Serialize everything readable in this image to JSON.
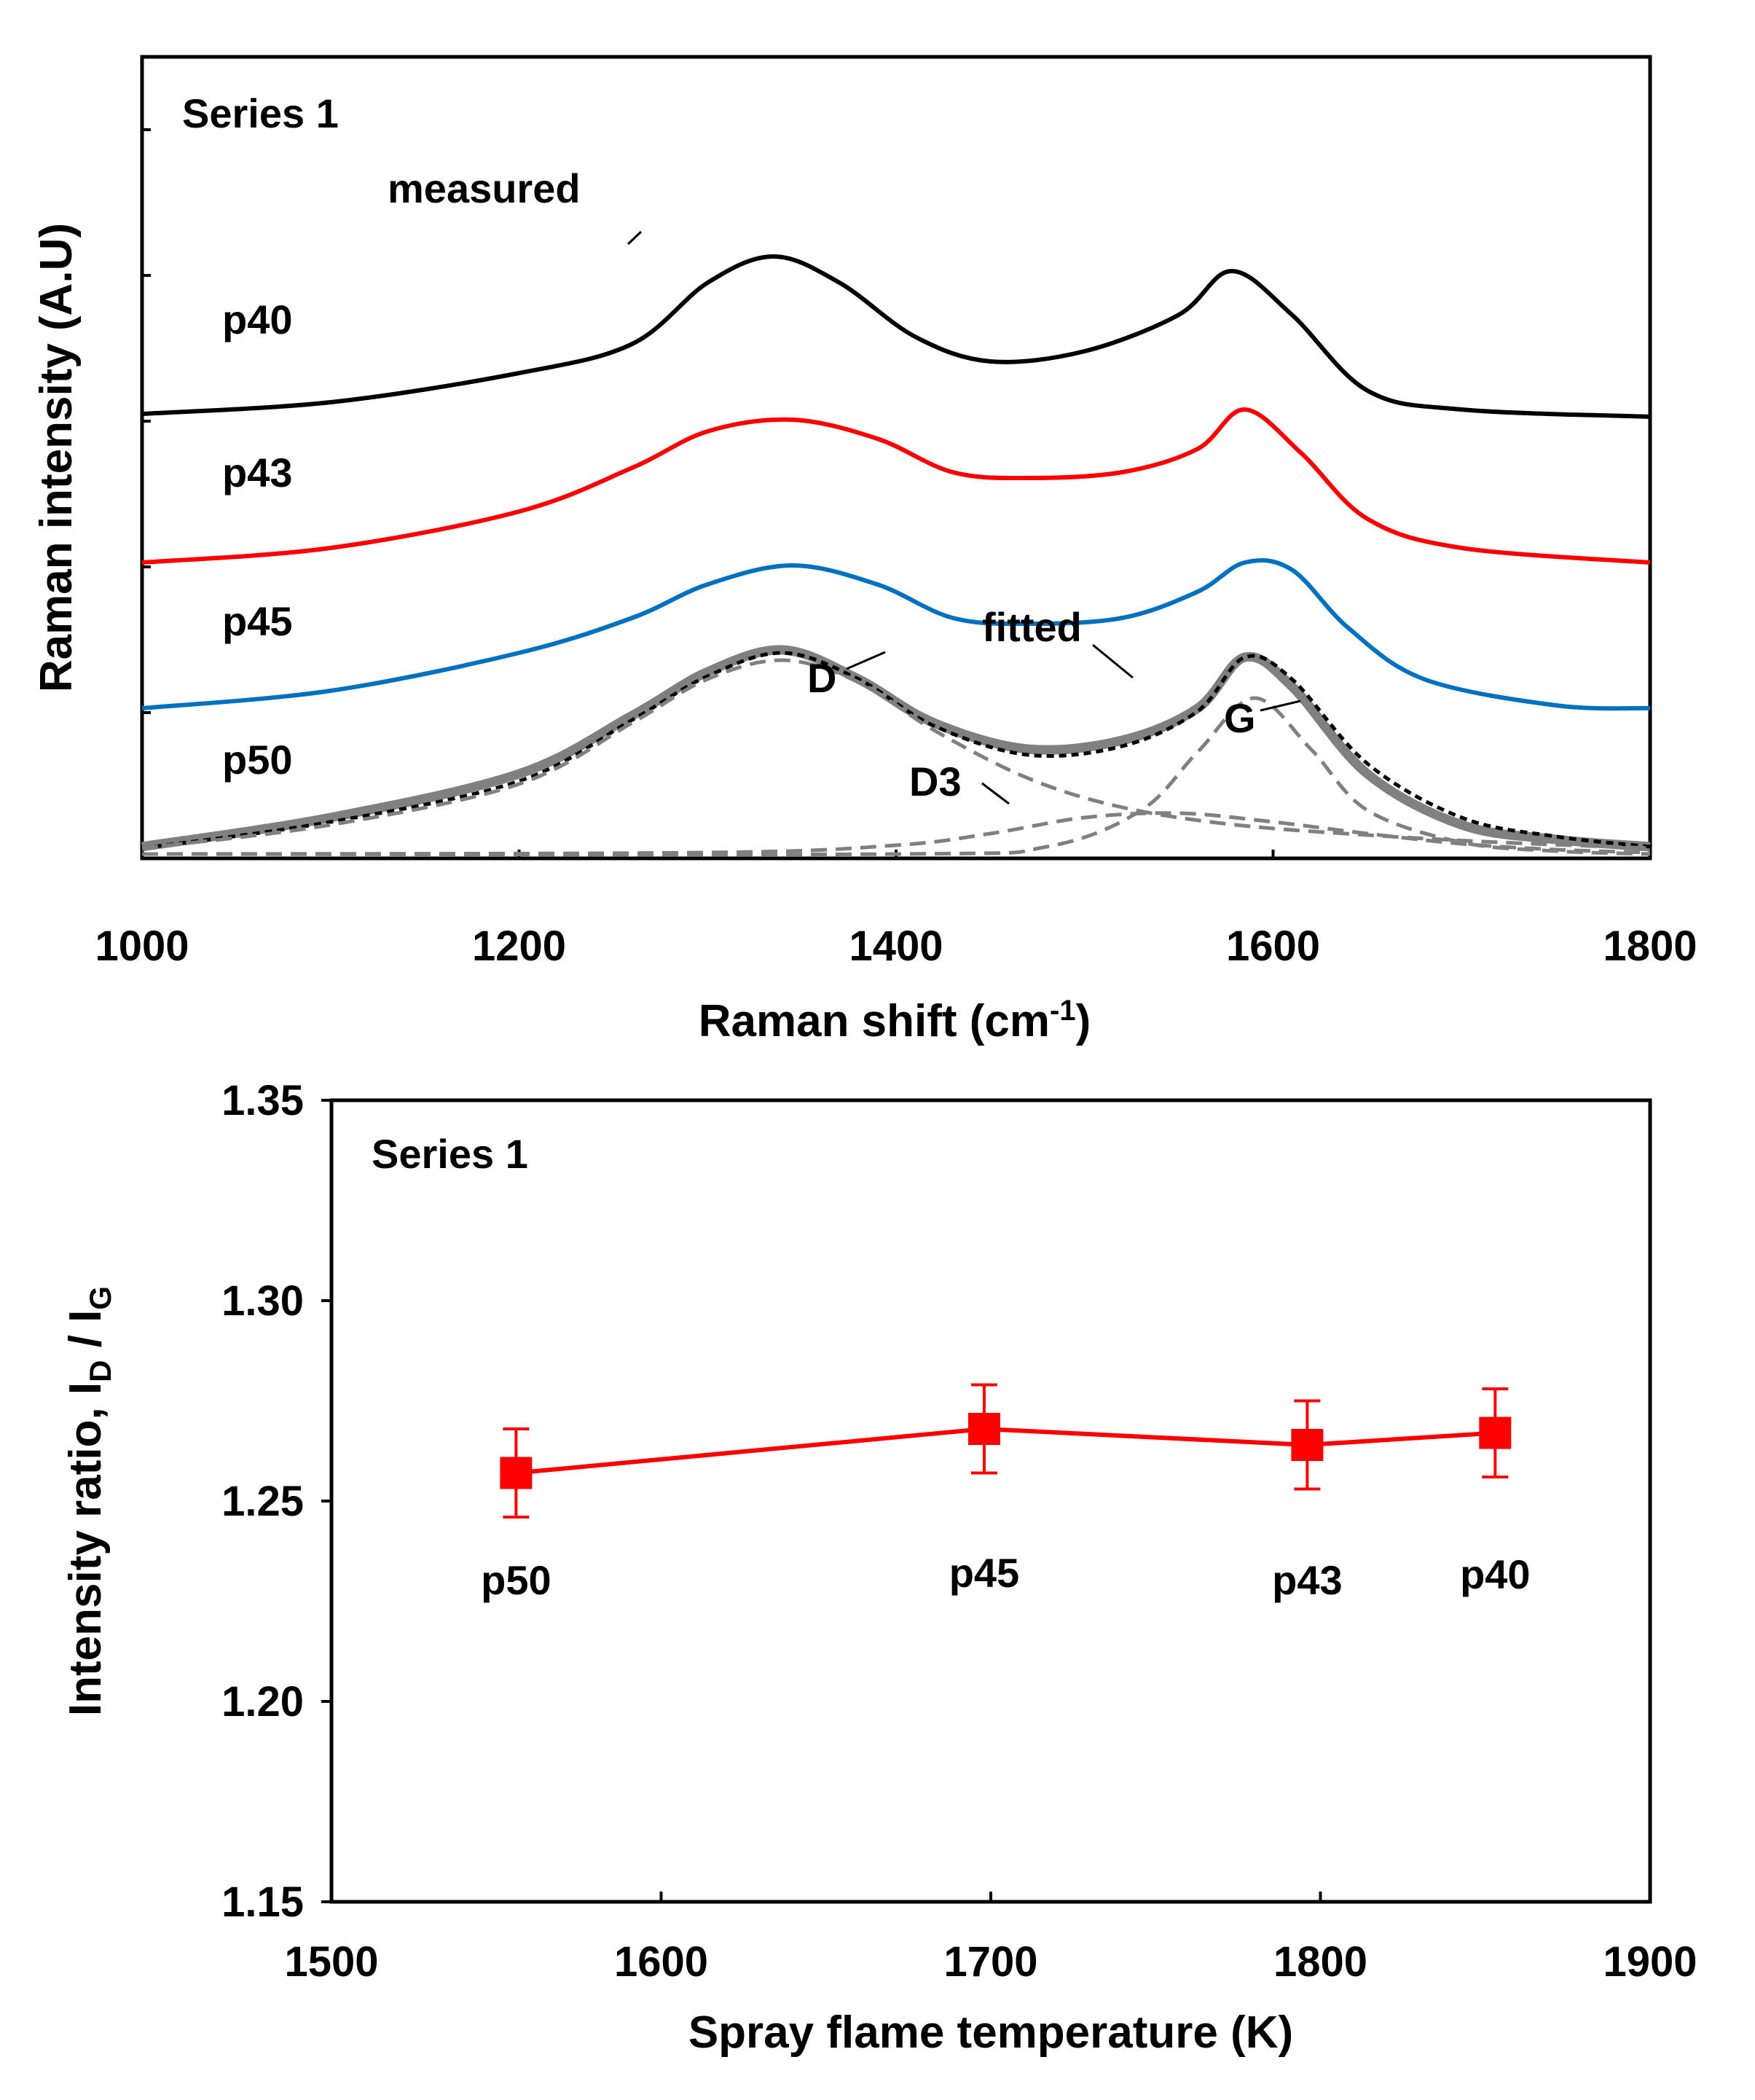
{
  "chart_data": [
    {
      "type": "line",
      "title": "",
      "panel_label": "Series 1",
      "xlabel_main": "Raman shift (cm",
      "xlabel_sup": "-1",
      "xlabel_end": ")",
      "ylabel": "Raman intensity (A.U)",
      "xlim": [
        1000,
        1800
      ],
      "x_ticks": [
        "1000",
        "1200",
        "1400",
        "1600",
        "1800"
      ],
      "y_ticks_unlabeled": 5,
      "grid": false,
      "series": [
        {
          "name": "p40",
          "color": "#000000",
          "style": "solid",
          "offset": 3.0,
          "x": [
            1000,
            1100,
            1200,
            1260,
            1300,
            1335,
            1370,
            1410,
            1450,
            1500,
            1550,
            1578,
            1610,
            1650,
            1700,
            1800
          ],
          "y": [
            0.02,
            0.1,
            0.3,
            0.5,
            0.92,
            1.1,
            0.92,
            0.55,
            0.38,
            0.45,
            0.7,
            1.0,
            0.7,
            0.18,
            0.05,
            0.0
          ]
        },
        {
          "name": "p43",
          "color": "#ff0000",
          "style": "solid",
          "offset": 2.0,
          "x": [
            1000,
            1100,
            1200,
            1260,
            1300,
            1345,
            1390,
            1430,
            1470,
            1520,
            1560,
            1585,
            1615,
            1650,
            1700,
            1800
          ],
          "y": [
            0.0,
            0.1,
            0.35,
            0.65,
            0.9,
            0.98,
            0.85,
            0.62,
            0.58,
            0.62,
            0.78,
            1.05,
            0.75,
            0.3,
            0.1,
            0.0
          ]
        },
        {
          "name": "p45",
          "color": "#0070c0",
          "style": "solid",
          "offset": 1.0,
          "x": [
            1000,
            1100,
            1200,
            1260,
            1300,
            1345,
            1390,
            1430,
            1470,
            1520,
            1560,
            1585,
            1610,
            1640,
            1680,
            1750,
            1800
          ],
          "y": [
            0.0,
            0.12,
            0.38,
            0.62,
            0.85,
            0.98,
            0.85,
            0.62,
            0.58,
            0.62,
            0.8,
            1.0,
            0.95,
            0.55,
            0.2,
            0.02,
            0.0
          ]
        },
        {
          "name": "p50 measured",
          "color": "#808080",
          "style": "thick",
          "offset": 0.0,
          "x": [
            1000,
            1100,
            1200,
            1260,
            1300,
            1340,
            1380,
            1420,
            1470,
            1520,
            1560,
            1585,
            1610,
            1650,
            1700,
            1750,
            1800
          ],
          "y": [
            0.05,
            0.25,
            0.55,
            0.95,
            1.25,
            1.4,
            1.2,
            0.9,
            0.72,
            0.78,
            1.0,
            1.35,
            1.15,
            0.55,
            0.2,
            0.1,
            0.05
          ]
        },
        {
          "name": "p50 fitted",
          "color": "#000000",
          "style": "dotted",
          "offset": 0.0,
          "x": [
            1000,
            1100,
            1200,
            1260,
            1300,
            1340,
            1380,
            1420,
            1470,
            1520,
            1560,
            1585,
            1610,
            1650,
            1700,
            1750,
            1800
          ],
          "y": [
            0.04,
            0.22,
            0.5,
            0.92,
            1.22,
            1.38,
            1.2,
            0.88,
            0.68,
            0.74,
            0.98,
            1.35,
            1.2,
            0.62,
            0.25,
            0.12,
            0.05
          ]
        },
        {
          "name": "D",
          "color": "#808080",
          "style": "dashed",
          "offset": 0.0,
          "x": [
            1000,
            1100,
            1200,
            1260,
            1300,
            1340,
            1380,
            1420,
            1470,
            1520,
            1580,
            1650,
            1720,
            1800
          ],
          "y": [
            0.04,
            0.2,
            0.48,
            0.9,
            1.2,
            1.33,
            1.18,
            0.85,
            0.52,
            0.32,
            0.2,
            0.13,
            0.08,
            0.04
          ]
        },
        {
          "name": "G",
          "color": "#808080",
          "style": "dashed",
          "offset": 0.0,
          "x": [
            1000,
            1400,
            1480,
            1530,
            1560,
            1590,
            1620,
            1650,
            1700,
            1750,
            1800
          ],
          "y": [
            0.0,
            0.0,
            0.05,
            0.3,
            0.7,
            1.07,
            0.72,
            0.3,
            0.08,
            0.02,
            0.0
          ]
        },
        {
          "name": "D3",
          "color": "#808080",
          "style": "dashed",
          "offset": 0.0,
          "x": [
            1000,
            1300,
            1400,
            1450,
            1500,
            1550,
            1600,
            1650,
            1700,
            1750,
            1800
          ],
          "y": [
            0.0,
            0.01,
            0.06,
            0.14,
            0.25,
            0.28,
            0.22,
            0.14,
            0.07,
            0.03,
            0.01
          ]
        }
      ],
      "annotations": [
        "measured",
        "fitted",
        "D",
        "G",
        "D3"
      ],
      "series_labels": [
        "p40",
        "p43",
        "p45",
        "p50"
      ]
    },
    {
      "type": "line",
      "title": "",
      "panel_label": "Series 1",
      "xlabel": "Spray flame temperature (K)",
      "ylabel_main": "Intensity ratio,  I",
      "ylabel_sub1": "D",
      "ylabel_mid": " / I",
      "ylabel_sub2": "G",
      "xlim": [
        1500,
        1900
      ],
      "ylim": [
        1.15,
        1.35
      ],
      "x_ticks": [
        "1500",
        "1600",
        "1700",
        "1800",
        "1900"
      ],
      "y_ticks": [
        "1.15",
        "1.20",
        "1.25",
        "1.30",
        "1.35"
      ],
      "grid": false,
      "color": "#ff0000",
      "points": [
        {
          "x": 1556,
          "y": 1.257,
          "err": 0.011,
          "label": "p50"
        },
        {
          "x": 1698,
          "y": 1.268,
          "err": 0.011,
          "label": "p45"
        },
        {
          "x": 1796,
          "y": 1.264,
          "err": 0.011,
          "label": "p43"
        },
        {
          "x": 1853,
          "y": 1.267,
          "err": 0.011,
          "label": "p40"
        }
      ]
    }
  ]
}
